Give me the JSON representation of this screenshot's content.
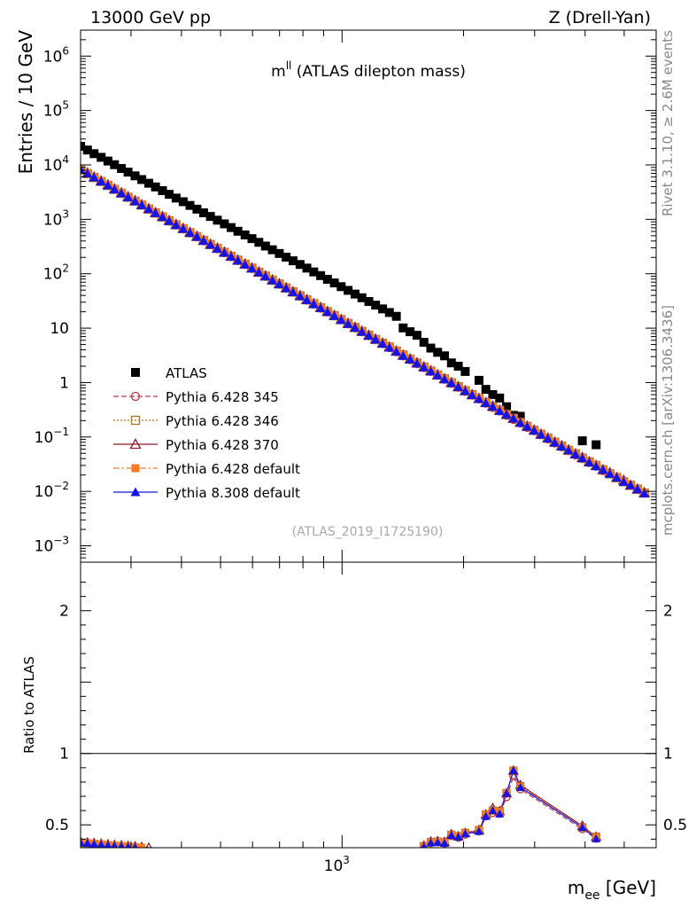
{
  "header": {
    "left": "13000 GeV pp",
    "right": "Z (Drell-Yan)"
  },
  "side": {
    "top": "Rivet 3.1.10, ≥ 2.6M events",
    "bottom": "mcplots.cern.ch [arXiv:1306.3436]"
  },
  "chart_data": {
    "type": "scatter",
    "title_main": "m",
    "title_sup": "ll",
    "title_rest": " (ATLAS dilepton mass)",
    "analysis_tag": "(ATLAS_2019_I1725190)",
    "ylabel": "Entries / 10 GeV",
    "ratio_ylabel": "Ratio to ATLAS",
    "xlabel_main": "m",
    "xlabel_sub": "ee",
    "xlabel_unit": " [GeV]",
    "xscale": "log",
    "yscale": "log",
    "xlim": [
      225,
      6000
    ],
    "ylim": [
      0.0005,
      3000000
    ],
    "ratio_ylim": [
      0.34,
      2.34
    ],
    "y_ticks": [
      {
        "value": 1000000,
        "base": "10",
        "exp": "6"
      },
      {
        "value": 100000,
        "base": "10",
        "exp": "5"
      },
      {
        "value": 10000,
        "base": "10",
        "exp": "4"
      },
      {
        "value": 1000,
        "base": "10",
        "exp": "3"
      },
      {
        "value": 100,
        "base": "10",
        "exp": "2"
      },
      {
        "value": 10,
        "base": "10",
        "exp": ""
      },
      {
        "value": 1,
        "base": "1",
        "exp": ""
      },
      {
        "value": 0.1,
        "base": "10",
        "exp": "−1"
      },
      {
        "value": 0.01,
        "base": "10",
        "exp": "−2"
      },
      {
        "value": 0.001,
        "base": "10",
        "exp": "−3"
      }
    ],
    "x_ticks": [
      {
        "value": 1000,
        "base": "10",
        "exp": "3"
      }
    ],
    "ratio_ticks": [
      {
        "value": 0.5,
        "label": "0.5"
      },
      {
        "value": 1,
        "label": "1"
      },
      {
        "value": 2,
        "label": "2"
      }
    ],
    "legend_position": "lower-left",
    "x": [
      225,
      234,
      243,
      253,
      263,
      273,
      284,
      295,
      307,
      319,
      332,
      345,
      359,
      373,
      388,
      404,
      420,
      437,
      454,
      472,
      491,
      511,
      531,
      552,
      575,
      598,
      622,
      646,
      672,
      699,
      727,
      756,
      787,
      818,
      851,
      885,
      920,
      957,
      995,
      1035,
      1077,
      1120,
      1165,
      1211,
      1260,
      1310,
      1363,
      1417,
      1474,
      1533,
      1595,
      1659,
      1725,
      1794,
      1866,
      1941,
      2019,
      2100,
      2184,
      2271,
      2362,
      2457,
      2556,
      2658,
      2765,
      2875,
      2991,
      3110,
      3235,
      3365,
      3500,
      3640,
      3786,
      3938,
      4096,
      4260,
      4431,
      4608,
      4793,
      4985,
      5185,
      5393,
      5609
    ],
    "series": [
      {
        "name": "ATLAS",
        "color": "#000000",
        "marker": "filled-square",
        "y": [
          22000,
          18800,
          16100,
          13800,
          11800,
          10100,
          8600,
          7370,
          6300,
          5390,
          4610,
          3940,
          3370,
          2880,
          2460,
          2110,
          1800,
          1540,
          1320,
          1130,
          965,
          826,
          706,
          604,
          517,
          442,
          378,
          323,
          276,
          236,
          202,
          173,
          148,
          127,
          108,
          92.5,
          79.1,
          67.7,
          57.9,
          49.5,
          42.3,
          36.2,
          30.9,
          26.5,
          22.6,
          19.4,
          16.5,
          10.1,
          8.6,
          7.4,
          5.5,
          4.3,
          3.6,
          3.1,
          2.3,
          2.0,
          1.6,
          null,
          1.1,
          0.75,
          0.6,
          0.52,
          0.36,
          0.25,
          0.24,
          null,
          null,
          null,
          null,
          null,
          null,
          null,
          null,
          0.085,
          null,
          0.072,
          null,
          null,
          null,
          null,
          null,
          null,
          null
        ]
      },
      {
        "name": "Pythia 6.428 345",
        "color": "#b03a48",
        "marker": "open-circle",
        "line": "dashed",
        "y": [
          8300,
          7000,
          5900,
          5000,
          4200,
          3550,
          3000,
          2540,
          2150,
          1820,
          1540,
          1300,
          1100,
          930,
          787,
          666,
          563,
          477,
          403,
          341,
          289,
          244,
          207,
          175,
          148,
          125,
          106,
          89.4,
          75.6,
          64.0,
          54.1,
          45.8,
          38.7,
          32.8,
          27.7,
          23.4,
          19.8,
          16.8,
          14.2,
          12.0,
          10.1,
          8.6,
          7.3,
          6.1,
          5.2,
          4.4,
          3.7,
          3.1,
          2.65,
          2.24,
          1.89,
          1.6,
          1.36,
          1.15,
          0.97,
          0.82,
          0.69,
          0.59,
          0.5,
          0.42,
          0.35,
          0.3,
          0.25,
          0.21,
          0.18,
          0.15,
          0.13,
          0.11,
          0.092,
          0.078,
          0.066,
          0.056,
          0.047,
          0.04,
          0.034,
          0.029,
          0.024,
          0.021,
          0.018,
          0.015,
          0.013,
          0.011,
          0.0093
        ]
      },
      {
        "name": "Pythia 6.428 346",
        "color": "#a8742a",
        "marker": "open-square",
        "line": "dotted",
        "y": [
          8200,
          6950,
          5880,
          4980,
          4210,
          3560,
          3020,
          2550,
          2160,
          1830,
          1550,
          1310,
          1110,
          940,
          795,
          673,
          569,
          482,
          408,
          345,
          292,
          247,
          209,
          177,
          150,
          127,
          107,
          90.7,
          76.7,
          64.9,
          54.9,
          46.4,
          39.3,
          33.2,
          28.1,
          23.8,
          20.1,
          17.0,
          14.4,
          12.2,
          10.3,
          8.7,
          7.4,
          6.2,
          5.3,
          4.5,
          3.8,
          3.2,
          2.7,
          2.28,
          1.93,
          1.63,
          1.38,
          1.17,
          0.99,
          0.84,
          0.71,
          0.6,
          0.51,
          0.43,
          0.36,
          0.31,
          0.26,
          0.22,
          0.185,
          0.157,
          0.133,
          0.112,
          0.095,
          0.08,
          0.068,
          0.057,
          0.049,
          0.041,
          0.035,
          0.03,
          0.025,
          0.021,
          0.018,
          0.015,
          0.013,
          0.011,
          0.0093
        ]
      },
      {
        "name": "Pythia 6.428 370",
        "color": "#8e1b28",
        "marker": "open-triangle",
        "line": "solid",
        "y": [
          8400,
          7100,
          6000,
          5080,
          4300,
          3630,
          3070,
          2600,
          2200,
          1860,
          1570,
          1330,
          1130,
          953,
          806,
          682,
          577,
          488,
          413,
          349,
          295,
          250,
          211,
          179,
          151,
          128,
          108,
          91.5,
          77.4,
          65.5,
          55.4,
          46.8,
          39.6,
          33.5,
          28.3,
          24.0,
          20.3,
          17.2,
          14.5,
          12.3,
          10.4,
          8.8,
          7.4,
          6.3,
          5.3,
          4.5,
          3.8,
          3.2,
          2.72,
          2.3,
          1.95,
          1.65,
          1.39,
          1.18,
          1.0,
          0.84,
          0.71,
          0.6,
          0.51,
          0.43,
          0.37,
          0.31,
          0.26,
          0.22,
          0.187,
          0.158,
          0.134,
          0.113,
          0.096,
          0.081,
          0.069,
          0.058,
          0.049,
          0.042,
          0.035,
          0.03,
          0.025,
          0.022,
          0.018,
          0.016,
          0.013,
          0.011,
          0.0095
        ]
      },
      {
        "name": "Pythia 6.428 default",
        "color": "#f47a28",
        "marker": "filled-square",
        "line": "dashdot",
        "y": [
          8350,
          7060,
          5970,
          5050,
          4270,
          3610,
          3050,
          2580,
          2180,
          1850,
          1560,
          1320,
          1120,
          946,
          800,
          677,
          572,
          484,
          410,
          346,
          293,
          248,
          210,
          177,
          150,
          127,
          107,
          90.8,
          76.8,
          65.0,
          54.9,
          46.5,
          39.3,
          33.2,
          28.1,
          23.8,
          20.1,
          17.0,
          14.4,
          12.2,
          10.3,
          8.7,
          7.4,
          6.2,
          5.3,
          4.5,
          3.8,
          3.2,
          2.7,
          2.28,
          1.93,
          1.63,
          1.38,
          1.17,
          0.99,
          0.84,
          0.71,
          0.6,
          0.51,
          0.43,
          0.36,
          0.31,
          0.26,
          0.22,
          0.185,
          0.157,
          0.133,
          0.112,
          0.095,
          0.08,
          0.068,
          0.057,
          0.049,
          0.041,
          0.035,
          0.03,
          0.025,
          0.021,
          0.018,
          0.015,
          0.013,
          0.011,
          0.0093
        ]
      },
      {
        "name": "Pythia 8.308 default",
        "color": "#1414e6",
        "marker": "filled-triangle",
        "line": "solid",
        "y": [
          8250,
          6980,
          5900,
          4990,
          4220,
          3570,
          3020,
          2550,
          2160,
          1830,
          1550,
          1310,
          1110,
          936,
          792,
          670,
          567,
          479,
          405,
          343,
          290,
          245,
          207,
          175,
          148,
          125,
          106,
          89.7,
          75.9,
          64.2,
          54.3,
          45.9,
          38.8,
          32.8,
          27.8,
          23.5,
          19.9,
          16.8,
          14.2,
          12.0,
          10.2,
          8.6,
          7.3,
          6.2,
          5.2,
          4.4,
          3.7,
          3.1,
          2.67,
          2.26,
          1.91,
          1.61,
          1.36,
          1.15,
          0.98,
          0.83,
          0.7,
          0.59,
          0.5,
          0.42,
          0.36,
          0.3,
          0.26,
          0.22,
          0.183,
          0.155,
          0.131,
          0.111,
          0.094,
          0.079,
          0.067,
          0.057,
          0.048,
          0.041,
          0.034,
          0.029,
          0.025,
          0.021,
          0.018,
          0.015,
          0.013,
          0.011,
          0.0092
        ]
      }
    ]
  }
}
